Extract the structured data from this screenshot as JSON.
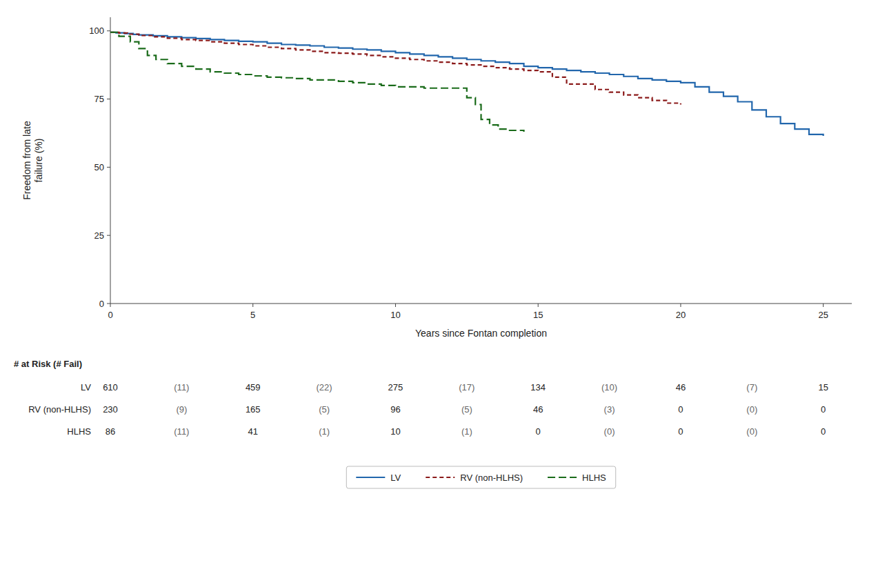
{
  "chart_data": {
    "type": "step",
    "xlabel": "Years since Fontan completion",
    "ylabel": "Freedom from late\nfailure (%)",
    "xlim": [
      0,
      26
    ],
    "ylim": [
      0,
      105
    ],
    "xticks": [
      0,
      5,
      10,
      15,
      20,
      25
    ],
    "yticks": [
      0,
      25,
      50,
      75,
      100
    ],
    "grid": false,
    "legend": "bottom",
    "series": [
      {
        "name": "LV",
        "color": "#2166ac",
        "line_style": "solid",
        "x": [
          0,
          0.2,
          0.5,
          0.8,
          1.0,
          1.5,
          2.0,
          2.5,
          3.0,
          3.5,
          4.0,
          4.5,
          5.0,
          5.5,
          6.0,
          6.5,
          7.0,
          7.5,
          8.0,
          8.5,
          9.0,
          9.5,
          10.0,
          10.5,
          11.0,
          11.5,
          12.0,
          12.5,
          13.0,
          13.5,
          14.0,
          14.5,
          15.0,
          15.5,
          16.0,
          16.5,
          17.0,
          17.5,
          18.0,
          18.5,
          19.0,
          19.5,
          20.0,
          20.5,
          21.0,
          21.5,
          22.0,
          22.5,
          23.0,
          23.5,
          24.0,
          24.5,
          25.0
        ],
        "values": [
          99.5,
          99.3,
          99.0,
          98.7,
          98.5,
          98.2,
          97.8,
          97.5,
          97.2,
          96.8,
          96.5,
          96.2,
          96.0,
          95.5,
          95.0,
          94.8,
          94.5,
          94.0,
          93.7,
          93.3,
          93.0,
          92.5,
          92.0,
          91.5,
          91.0,
          90.5,
          90.0,
          89.5,
          89.0,
          88.5,
          88.0,
          87.0,
          86.5,
          86.0,
          85.5,
          85.0,
          84.5,
          84.0,
          83.3,
          82.5,
          82.0,
          81.5,
          81.0,
          79.5,
          77.5,
          76.0,
          74.0,
          71.0,
          68.5,
          66.0,
          64.0,
          62.0,
          61.5
        ]
      },
      {
        "name": "RV (non-HLHS)",
        "color": "#8b1a1a",
        "line_style": "dashed",
        "x": [
          0,
          0.3,
          0.6,
          1.0,
          1.5,
          2.0,
          2.5,
          3.0,
          3.5,
          4.0,
          4.5,
          5.0,
          5.5,
          6.0,
          6.5,
          7.0,
          7.5,
          8.0,
          8.5,
          9.0,
          9.5,
          10.0,
          10.5,
          11.0,
          11.5,
          12.0,
          12.5,
          13.0,
          13.5,
          14.0,
          14.5,
          15.0,
          15.5,
          16.0,
          17.0,
          17.5,
          18.0,
          18.5,
          19.0,
          19.5,
          20.0
        ],
        "values": [
          99.5,
          99.2,
          98.8,
          98.3,
          97.8,
          97.3,
          96.8,
          96.5,
          96.0,
          95.5,
          95.0,
          94.5,
          94.0,
          93.5,
          93.0,
          92.5,
          92.0,
          91.8,
          91.5,
          91.0,
          90.5,
          90.0,
          89.5,
          89.0,
          88.5,
          88.0,
          87.5,
          87.0,
          86.5,
          86.0,
          85.5,
          85.0,
          83.0,
          80.5,
          78.5,
          77.5,
          76.5,
          75.5,
          74.5,
          73.5,
          73.0
        ]
      },
      {
        "name": "HLHS",
        "color": "#1a6b1a",
        "line_style": "longdash",
        "x": [
          0,
          0.3,
          0.7,
          1.0,
          1.3,
          1.6,
          2.0,
          2.5,
          3.0,
          3.5,
          4.0,
          4.5,
          5.0,
          5.5,
          6.0,
          6.5,
          7.0,
          7.5,
          8.0,
          8.5,
          9.0,
          9.5,
          10.0,
          10.5,
          11.0,
          11.5,
          12.0,
          12.5,
          12.8,
          13.0,
          13.3,
          13.6,
          14.0,
          14.5
        ],
        "values": [
          99.5,
          98.0,
          96.0,
          93.5,
          91.0,
          89.5,
          88.0,
          87.0,
          86.0,
          85.0,
          84.5,
          84.0,
          83.5,
          83.0,
          82.8,
          82.5,
          82.0,
          82.0,
          81.5,
          81.0,
          80.5,
          80.0,
          79.5,
          79.5,
          79.0,
          79.0,
          79.0,
          75.5,
          73.0,
          67.5,
          65.5,
          64.0,
          63.5,
          63.0
        ]
      }
    ],
    "risk_table": {
      "header": "# at Risk (# Fail)",
      "rows": [
        {
          "label": "LV",
          "values": [
            "610",
            "(11)",
            "459",
            "(22)",
            "275",
            "(17)",
            "134",
            "(10)",
            "46",
            "(7)",
            "15"
          ]
        },
        {
          "label": "RV (non-HLHS)",
          "values": [
            "230",
            "(9)",
            "165",
            "(5)",
            "96",
            "(5)",
            "46",
            "(3)",
            "0",
            "(0)",
            "0"
          ]
        },
        {
          "label": "HLHS",
          "values": [
            "86",
            "(11)",
            "41",
            "(1)",
            "10",
            "(1)",
            "0",
            "(0)",
            "0",
            "(0)",
            "0"
          ]
        }
      ]
    }
  }
}
